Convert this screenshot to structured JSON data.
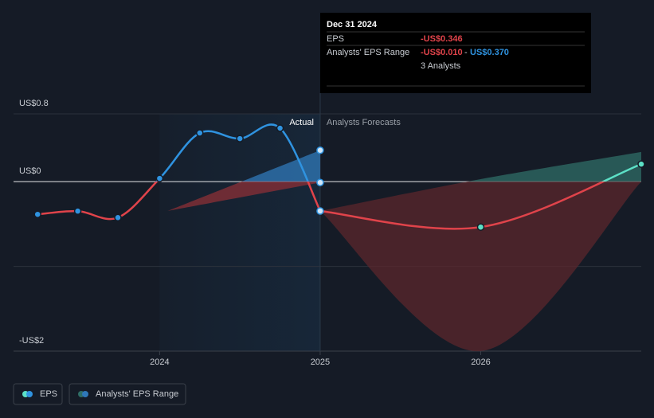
{
  "chart_data": {
    "type": "line",
    "xticks": [
      2024,
      2025,
      2026
    ],
    "xlim": [
      2023.09,
      2027.0
    ],
    "ylim": [
      -2,
      0.8
    ],
    "yticks": [
      {
        "value": 0.8,
        "label": "US$0.8"
      },
      {
        "value": 0,
        "label": "US$0"
      },
      {
        "value": -1,
        "label": null
      },
      {
        "value": -2,
        "label": "-US$2"
      }
    ],
    "section_labels": {
      "actual": "Actual",
      "forecast": "Analysts Forecasts"
    },
    "series": [
      {
        "name": "EPS",
        "color": "#2f93e0",
        "negative_color": "#e0434a",
        "x": [
          2023.24,
          2023.49,
          2023.74,
          2024.0,
          2024.25,
          2024.5,
          2024.75,
          2025.0
        ],
        "values": [
          -0.386,
          -0.348,
          -0.424,
          0.038,
          0.574,
          0.508,
          0.631,
          -0.346
        ]
      },
      {
        "name": "EPS forecast",
        "color": "#5ce0c6",
        "negative_color": "#e0434a",
        "x": [
          2025.0,
          2026.0,
          2027.0
        ],
        "values": [
          -0.346,
          -0.536,
          0.207
        ]
      }
    ],
    "ranges": [
      {
        "name": "Analysts' EPS Range",
        "color": "#2f78b8",
        "negative_color": "#8c2f36",
        "x": [
          2024.05,
          2025.0
        ],
        "high": [
          -0.346,
          0.37
        ],
        "low": [
          -0.346,
          -0.01
        ]
      },
      {
        "name": "Analysts' EPS Range forecast",
        "color": "#2f6d66",
        "negative_color": "#5a262c",
        "x": [
          2025.0,
          2026.0,
          2027.0
        ],
        "high": [
          -0.346,
          0.03,
          0.35
        ],
        "low": [
          -0.346,
          -2.0,
          0
        ]
      }
    ],
    "legend": [
      "EPS",
      "Analysts' EPS Range"
    ],
    "tooltip": {
      "date": "Dec 31 2024",
      "eps_label": "EPS",
      "eps_value": "-US$0.346",
      "range_label": "Analysts' EPS Range",
      "range_low": "-US$0.010",
      "range_sep": "-",
      "range_high": "US$0.370",
      "analysts": "3 Analysts"
    }
  }
}
